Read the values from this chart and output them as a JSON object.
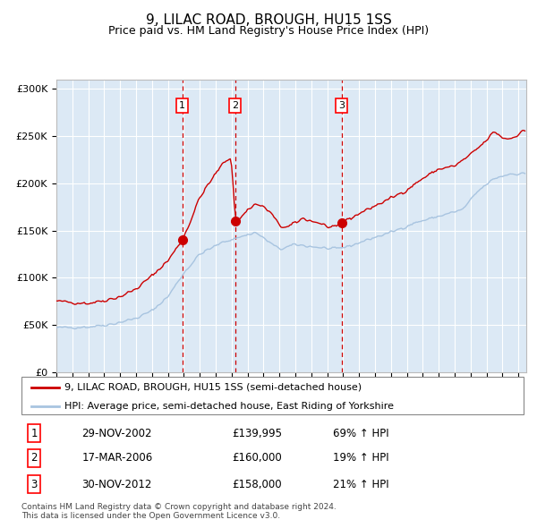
{
  "title": "9, LILAC ROAD, BROUGH, HU15 1SS",
  "subtitle": "Price paid vs. HM Land Registry's House Price Index (HPI)",
  "title_fontsize": 11,
  "subtitle_fontsize": 9,
  "bg_color": "#dce9f5",
  "grid_color": "#ffffff",
  "red_line_color": "#cc0000",
  "blue_line_color": "#a8c4e0",
  "sale_marker_color": "#cc0000",
  "vline_color": "#cc0000",
  "legend_label_red": "9, LILAC ROAD, BROUGH, HU15 1SS (semi-detached house)",
  "legend_label_blue": "HPI: Average price, semi-detached house, East Riding of Yorkshire",
  "sales": [
    {
      "num": 1,
      "date_label": "29-NOV-2002",
      "date_x": 2002.91,
      "price": 139995,
      "hpi_pct": "69% ↑ HPI"
    },
    {
      "num": 2,
      "date_label": "17-MAR-2006",
      "date_x": 2006.21,
      "price": 160000,
      "hpi_pct": "19% ↑ HPI"
    },
    {
      "num": 3,
      "date_label": "30-NOV-2012",
      "date_x": 2012.91,
      "price": 158000,
      "hpi_pct": "21% ↑ HPI"
    }
  ],
  "footer": "Contains HM Land Registry data © Crown copyright and database right 2024.\nThis data is licensed under the Open Government Licence v3.0.",
  "ylim": [
    0,
    310000
  ],
  "xlim_start": 1995.0,
  "xlim_end": 2024.5,
  "hpi_anchors_t": [
    1995.0,
    1997.0,
    1998.5,
    2000.0,
    2001.0,
    2002.0,
    2003.0,
    2004.0,
    2005.5,
    2007.5,
    2009.0,
    2010.0,
    2011.5,
    2012.5,
    2013.5,
    2014.5,
    2016.0,
    2017.5,
    2019.0,
    2020.5,
    2021.5,
    2022.5,
    2023.5,
    2024.3
  ],
  "hpi_anchors_v": [
    47000,
    48000,
    51000,
    57000,
    65000,
    80000,
    105000,
    125000,
    138000,
    148000,
    130000,
    135000,
    132000,
    130000,
    134000,
    140000,
    148000,
    158000,
    165000,
    172000,
    192000,
    205000,
    210000,
    210000
  ],
  "red_anchors_t": [
    1995.0,
    1997.0,
    1998.0,
    1999.0,
    2000.0,
    2001.0,
    2002.0,
    2002.91,
    2003.3,
    2004.0,
    2005.0,
    2005.5,
    2006.0,
    2006.21,
    2006.5,
    2007.0,
    2007.5,
    2008.0,
    2008.5,
    2009.0,
    2009.5,
    2010.0,
    2010.5,
    2011.0,
    2011.5,
    2012.0,
    2012.5,
    2012.91,
    2013.0,
    2013.5,
    2014.0,
    2015.0,
    2016.0,
    2017.0,
    2018.0,
    2019.0,
    2020.0,
    2021.0,
    2022.0,
    2022.5,
    2023.0,
    2023.5,
    2024.0,
    2024.3
  ],
  "red_anchors_v": [
    75000,
    73000,
    76000,
    80000,
    88000,
    102000,
    118000,
    139995,
    155000,
    185000,
    210000,
    222000,
    228000,
    160000,
    162000,
    172000,
    178000,
    175000,
    168000,
    155000,
    153000,
    158000,
    163000,
    160000,
    158000,
    154000,
    152000,
    158000,
    160000,
    163000,
    168000,
    176000,
    184000,
    193000,
    205000,
    215000,
    218000,
    230000,
    245000,
    255000,
    248000,
    247000,
    252000,
    255000
  ]
}
